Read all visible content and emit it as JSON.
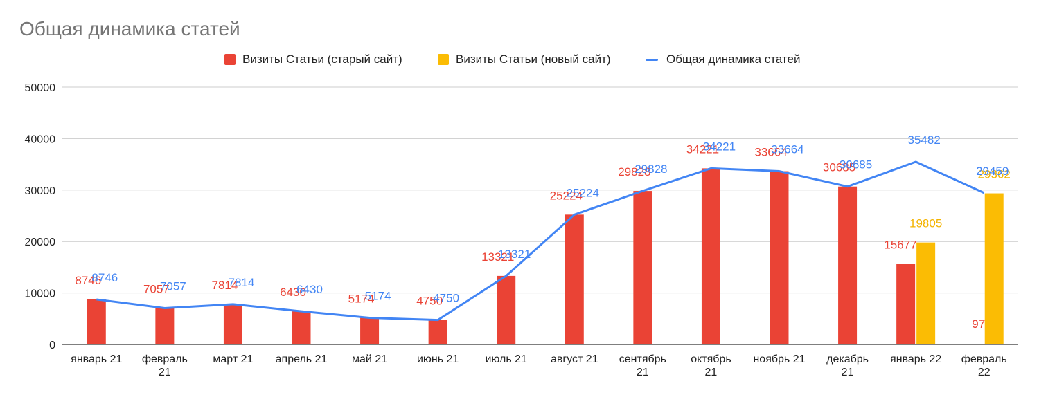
{
  "chart_data": {
    "type": "bar",
    "title": "Общая динамика статей",
    "categories": [
      [
        "январь 21"
      ],
      [
        "февраль",
        "21"
      ],
      [
        "март 21"
      ],
      [
        "апрель 21"
      ],
      [
        "май 21"
      ],
      [
        "июнь 21"
      ],
      [
        "июль 21"
      ],
      [
        "август 21"
      ],
      [
        "сентябрь",
        "21"
      ],
      [
        "октябрь",
        "21"
      ],
      [
        "ноябрь 21"
      ],
      [
        "декабрь",
        "21"
      ],
      [
        "январь 22"
      ],
      [
        "февраль",
        "22"
      ]
    ],
    "series": [
      {
        "name": "Визиты Статьи (старый сайт)",
        "type": "bar",
        "color": "#EA4335",
        "values": [
          8746,
          7057,
          7814,
          6430,
          5174,
          4750,
          13321,
          25224,
          29828,
          34221,
          33664,
          30685,
          15677,
          97
        ],
        "labels": [
          "8746",
          "7057",
          "7814",
          "6430",
          "5174",
          "4750",
          "13321",
          "25224",
          "29828",
          "34221",
          "33664",
          "30685",
          "15677",
          "97"
        ]
      },
      {
        "name": "Визиты Статьи (новый сайт)",
        "type": "bar",
        "color": "#FBBC04",
        "values": [
          null,
          null,
          null,
          null,
          null,
          null,
          null,
          null,
          null,
          null,
          null,
          null,
          19805,
          29362
        ],
        "labels": [
          "",
          "",
          "",
          "",
          "",
          "",
          "",
          "",
          "",
          "",
          "",
          "",
          "19805",
          "29362"
        ]
      },
      {
        "name": "Общая динамика статей",
        "type": "line",
        "color": "#4285F4",
        "values": [
          8746,
          7057,
          7814,
          6430,
          5174,
          4750,
          13321,
          25224,
          29828,
          34221,
          33664,
          30685,
          35482,
          29459
        ],
        "labels": [
          "8746",
          "7057",
          "7814",
          "6430",
          "5174",
          "4750",
          "13321",
          "25224",
          "29828",
          "34221",
          "33664",
          "30685",
          "35482",
          "29459"
        ]
      }
    ],
    "ylim": [
      0,
      50000
    ],
    "yticks": [
      "0",
      "10000",
      "20000",
      "30000",
      "40000",
      "50000"
    ],
    "grid": true,
    "legend_position": "top"
  }
}
